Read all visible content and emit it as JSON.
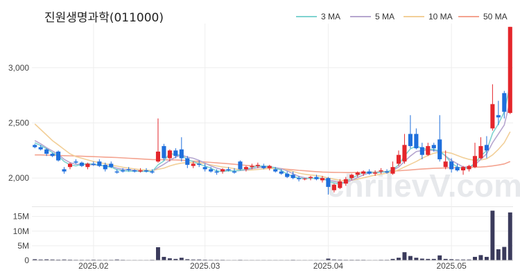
{
  "header": {
    "title": "진원생명과학(011000)"
  },
  "legend": [
    {
      "label": "3 MA",
      "color": "#7fd3d0"
    },
    {
      "label": "5 MA",
      "color": "#b6a6cf"
    },
    {
      "label": "10 MA",
      "color": "#f2cf98"
    },
    {
      "label": "50 MA",
      "color": "#f4a38f"
    }
  ],
  "watermark": "chrilevV.com",
  "colors": {
    "up": "#e4262b",
    "down": "#1f6fdc",
    "volume": "#3b3b5c",
    "grid": "#eeeeee"
  },
  "chart_data": {
    "type": "candlestick",
    "price_ylim": [
      1750,
      3400
    ],
    "price_yticks": [
      {
        "v": 2000,
        "label": "2,000"
      },
      {
        "v": 2500,
        "label": "2,500"
      },
      {
        "v": 3000,
        "label": "3,000"
      }
    ],
    "volume_ylim": [
      0,
      18000000
    ],
    "volume_yticks": [
      {
        "v": 0,
        "label": "0"
      },
      {
        "v": 5000000,
        "label": "5M"
      },
      {
        "v": 10000000,
        "label": "10M"
      },
      {
        "v": 15000000,
        "label": "15M"
      }
    ],
    "xticks": [
      {
        "i": 10,
        "label": "2025.02"
      },
      {
        "i": 29,
        "label": "2025.03"
      },
      {
        "i": 50,
        "label": "2025.04"
      },
      {
        "i": 71,
        "label": "2025.05"
      }
    ],
    "candles": [
      [
        2300,
        2310,
        2270,
        2280
      ],
      [
        2280,
        2300,
        2250,
        2260
      ],
      [
        2260,
        2270,
        2200,
        2220
      ],
      [
        2220,
        2230,
        2190,
        2200
      ],
      [
        2240,
        2250,
        2150,
        2160
      ],
      [
        2080,
        2100,
        2040,
        2060
      ],
      [
        2100,
        2140,
        2080,
        2130
      ],
      [
        2150,
        2170,
        2130,
        2140
      ],
      [
        2140,
        2150,
        2100,
        2110
      ],
      [
        2100,
        2140,
        2080,
        2130
      ],
      [
        2130,
        2150,
        2110,
        2120
      ],
      [
        2150,
        2170,
        2100,
        2110
      ],
      [
        2120,
        2140,
        2060,
        2080
      ],
      [
        2130,
        2150,
        2090,
        2100
      ],
      [
        2060,
        2080,
        2040,
        2050
      ],
      [
        2070,
        2090,
        2050,
        2060
      ],
      [
        2080,
        2100,
        2060,
        2070
      ],
      [
        2070,
        2080,
        2050,
        2060
      ],
      [
        2060,
        2090,
        2050,
        2070
      ],
      [
        2070,
        2090,
        2050,
        2060
      ],
      [
        2060,
        2080,
        2040,
        2050
      ],
      [
        2150,
        2540,
        2140,
        2240
      ],
      [
        2290,
        2310,
        2160,
        2180
      ],
      [
        2180,
        2260,
        2150,
        2250
      ],
      [
        2250,
        2270,
        2180,
        2200
      ],
      [
        2260,
        2370,
        2150,
        2180
      ],
      [
        2180,
        2200,
        2090,
        2120
      ],
      [
        2110,
        2150,
        2090,
        2130
      ],
      [
        2130,
        2160,
        2100,
        2120
      ],
      [
        2100,
        2130,
        2060,
        2080
      ],
      [
        2080,
        2100,
        2050,
        2060
      ],
      [
        2060,
        2080,
        2030,
        2050
      ],
      [
        2060,
        2090,
        2040,
        2080
      ],
      [
        2080,
        2100,
        2060,
        2070
      ],
      [
        2060,
        2090,
        2040,
        2050
      ],
      [
        2150,
        2160,
        2070,
        2080
      ],
      [
        2080,
        2110,
        2060,
        2100
      ],
      [
        2100,
        2130,
        2080,
        2110
      ],
      [
        2110,
        2140,
        2090,
        2120
      ],
      [
        2110,
        2130,
        2080,
        2090
      ],
      [
        2090,
        2120,
        2070,
        2110
      ],
      [
        2080,
        2100,
        2050,
        2060
      ],
      [
        2060,
        2080,
        2030,
        2040
      ],
      [
        2040,
        2060,
        2000,
        2010
      ],
      [
        2030,
        2060,
        1990,
        2000
      ],
      [
        2000,
        2020,
        1970,
        1990
      ],
      [
        1990,
        2000,
        1980,
        1995
      ],
      [
        2000,
        2020,
        1980,
        2010
      ],
      [
        2010,
        2030,
        1980,
        1990
      ],
      [
        1980,
        2020,
        1960,
        2000
      ],
      [
        2000,
        2010,
        1850,
        1920
      ],
      [
        1890,
        1950,
        1870,
        1940
      ],
      [
        1910,
        1990,
        1900,
        1970
      ],
      [
        1950,
        2010,
        1930,
        1990
      ],
      [
        2000,
        2040,
        1980,
        2030
      ],
      [
        2030,
        2060,
        2010,
        2050
      ],
      [
        2040,
        2070,
        2020,
        2060
      ],
      [
        2060,
        2080,
        2030,
        2040
      ],
      [
        2040,
        2070,
        2020,
        2050
      ],
      [
        2060,
        2090,
        2040,
        2070
      ],
      [
        2060,
        2080,
        2040,
        2050
      ],
      [
        2040,
        2150,
        2030,
        2100
      ],
      [
        2130,
        2250,
        2110,
        2210
      ],
      [
        2150,
        2400,
        2130,
        2300
      ],
      [
        2400,
        2570,
        2270,
        2290
      ],
      [
        2400,
        2450,
        2260,
        2270
      ],
      [
        2280,
        2320,
        2170,
        2210
      ],
      [
        2210,
        2320,
        2200,
        2290
      ],
      [
        2300,
        2320,
        2240,
        2270
      ],
      [
        2350,
        2570,
        2150,
        2170
      ],
      [
        2100,
        2250,
        2080,
        2150
      ],
      [
        2150,
        2180,
        2050,
        2080
      ],
      [
        2100,
        2130,
        2060,
        2070
      ],
      [
        2070,
        2110,
        2030,
        2100
      ],
      [
        2080,
        2120,
        2060,
        2110
      ],
      [
        2100,
        2320,
        2090,
        2200
      ],
      [
        2180,
        2370,
        2170,
        2290
      ],
      [
        2300,
        2380,
        2180,
        2250
      ],
      [
        2450,
        2850,
        2430,
        2670
      ],
      [
        2570,
        2700,
        2480,
        2550
      ],
      [
        2770,
        2790,
        2540,
        2600
      ],
      [
        2590,
        3370,
        2580,
        3370
      ]
    ],
    "ma3": [
      2320,
      2295,
      2265,
      2230,
      2200,
      2150,
      2120,
      2110,
      2125,
      2130,
      2125,
      2120,
      2105,
      2100,
      2075,
      2070,
      2060,
      2065,
      2060,
      2062,
      2060,
      2120,
      2155,
      2225,
      2210,
      2210,
      2165,
      2150,
      2125,
      2110,
      2090,
      2065,
      2060,
      2065,
      2065,
      2070,
      2080,
      2095,
      2110,
      2107,
      2107,
      2090,
      2070,
      2035,
      2015,
      2000,
      1995,
      1998,
      2000,
      2000,
      1970,
      1955,
      1945,
      1968,
      2000,
      2025,
      2050,
      2050,
      2050,
      2055,
      2058,
      2075,
      2120,
      2200,
      2265,
      2290,
      2270,
      2260,
      2260,
      2245,
      2200,
      2135,
      2100,
      2085,
      2095,
      2135,
      2200,
      2250,
      2405,
      2490,
      2600,
      2850
    ],
    "ma5": [
      2340,
      2310,
      2275,
      2245,
      2215,
      2170,
      2140,
      2125,
      2125,
      2120,
      2120,
      2115,
      2110,
      2105,
      2090,
      2080,
      2075,
      2070,
      2065,
      2062,
      2062,
      2095,
      2125,
      2160,
      2190,
      2210,
      2190,
      2180,
      2160,
      2135,
      2110,
      2090,
      2075,
      2070,
      2065,
      2068,
      2073,
      2085,
      2095,
      2100,
      2102,
      2095,
      2085,
      2065,
      2040,
      2015,
      2003,
      1998,
      1998,
      1997,
      1983,
      1970,
      1958,
      1960,
      1980,
      2005,
      2030,
      2045,
      2050,
      2052,
      2058,
      2070,
      2100,
      2150,
      2200,
      2240,
      2250,
      2255,
      2250,
      2240,
      2200,
      2160,
      2130,
      2100,
      2100,
      2120,
      2170,
      2220,
      2320,
      2400,
      2480,
      2700
    ],
    "ma10": [
      2490,
      2440,
      2390,
      2340,
      2300,
      2260,
      2220,
      2195,
      2180,
      2165,
      2150,
      2140,
      2130,
      2118,
      2108,
      2098,
      2090,
      2083,
      2077,
      2072,
      2068,
      2080,
      2090,
      2110,
      2125,
      2135,
      2140,
      2140,
      2140,
      2130,
      2120,
      2110,
      2100,
      2095,
      2085,
      2075,
      2072,
      2073,
      2078,
      2083,
      2087,
      2087,
      2083,
      2073,
      2060,
      2045,
      2035,
      2028,
      2022,
      2015,
      2000,
      1990,
      1980,
      1976,
      1980,
      1990,
      2003,
      2015,
      2027,
      2035,
      2045,
      2055,
      2075,
      2100,
      2125,
      2150,
      2180,
      2205,
      2225,
      2235,
      2235,
      2225,
      2205,
      2185,
      2170,
      2160,
      2165,
      2175,
      2210,
      2260,
      2320,
      2420
    ],
    "ma50": [
      2210,
      2210,
      2208,
      2206,
      2205,
      2203,
      2202,
      2200,
      2198,
      2196,
      2194,
      2192,
      2190,
      2188,
      2186,
      2183,
      2180,
      2177,
      2174,
      2171,
      2168,
      2167,
      2166,
      2165,
      2164,
      2162,
      2158,
      2154,
      2150,
      2146,
      2142,
      2138,
      2134,
      2130,
      2125,
      2120,
      2115,
      2110,
      2105,
      2100,
      2095,
      2090,
      2085,
      2080,
      2075,
      2070,
      2066,
      2062,
      2058,
      2055,
      2053,
      2052,
      2051,
      2050,
      2050,
      2051,
      2052,
      2053,
      2055,
      2057,
      2060,
      2063,
      2066,
      2070,
      2074,
      2078,
      2082,
      2085,
      2088,
      2090,
      2092,
      2093,
      2094,
      2095,
      2096,
      2098,
      2100,
      2104,
      2110,
      2118,
      2128,
      2150
    ],
    "volume": [
      400000,
      300000,
      350000,
      300000,
      250000,
      300000,
      250000,
      200000,
      200000,
      200000,
      250000,
      200000,
      200000,
      200000,
      300000,
      200000,
      150000,
      150000,
      150000,
      150000,
      200000,
      4500000,
      1200000,
      700000,
      500000,
      900000,
      400000,
      300000,
      300000,
      250000,
      200000,
      200000,
      200000,
      150000,
      150000,
      200000,
      150000,
      150000,
      150000,
      150000,
      150000,
      150000,
      150000,
      150000,
      200000,
      150000,
      150000,
      150000,
      150000,
      150000,
      600000,
      300000,
      250000,
      200000,
      200000,
      200000,
      200000,
      150000,
      150000,
      200000,
      200000,
      500000,
      900000,
      2800000,
      1500000,
      900000,
      600000,
      500000,
      500000,
      1700000,
      500000,
      400000,
      300000,
      300000,
      300000,
      1200000,
      1800000,
      1200000,
      17000000,
      3800000,
      4600000,
      16400000
    ]
  }
}
